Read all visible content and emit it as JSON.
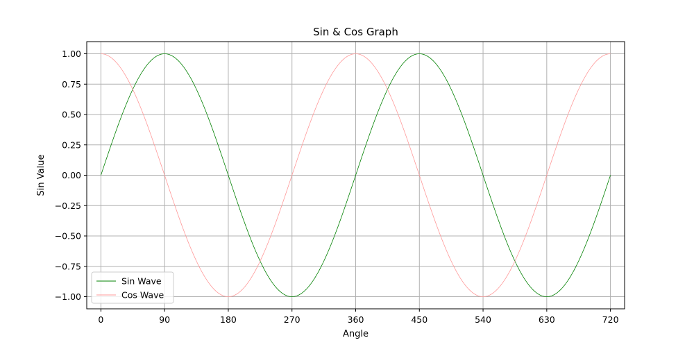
{
  "chart_data": {
    "type": "line",
    "title": "Sin & Cos Graph",
    "xlabel": "Angle",
    "ylabel": "Sin Value",
    "xlim": [
      -20,
      740
    ],
    "ylim": [
      -1.1,
      1.1
    ],
    "xticks": [
      0,
      90,
      180,
      270,
      360,
      450,
      540,
      630,
      720
    ],
    "yticks": [
      1.0,
      0.75,
      0.5,
      0.25,
      0.0,
      -0.25,
      -0.5,
      -0.75,
      -1.0
    ],
    "ytick_labels": [
      "1.00",
      "0.75",
      "0.50",
      "0.25",
      "0.00",
      "−0.25",
      "−0.50",
      "−0.75",
      "−1.00"
    ],
    "grid": true,
    "legend_position": "lower-left",
    "x_range": [
      0,
      720
    ],
    "series": [
      {
        "name": "Sin Wave",
        "function": "sin",
        "color": "#008000"
      },
      {
        "name": "Cos Wave",
        "function": "cos",
        "color": "#ff9999"
      }
    ]
  }
}
